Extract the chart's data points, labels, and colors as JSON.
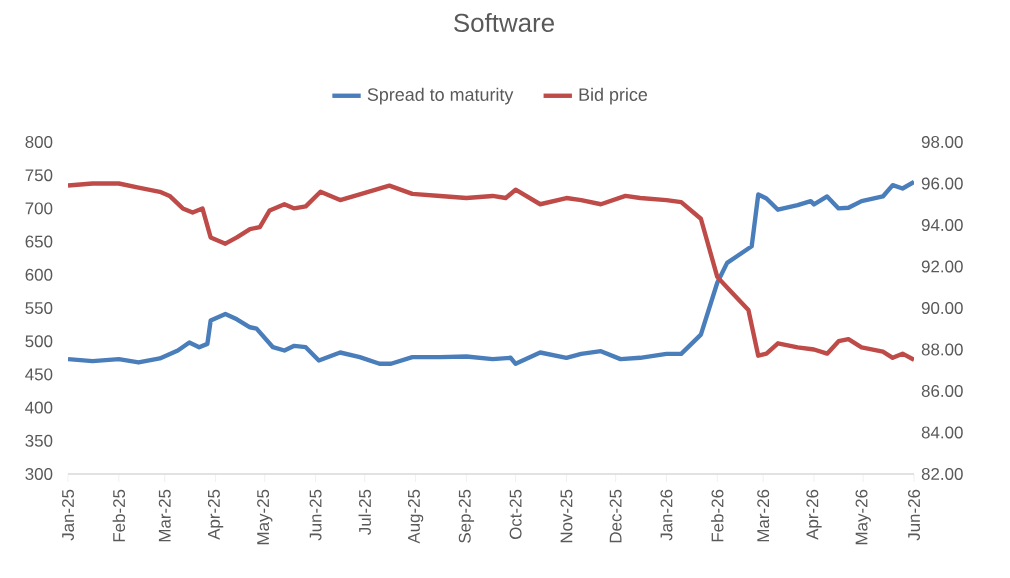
{
  "chart_data": {
    "type": "line",
    "title": "Software",
    "legend": "top",
    "marker": "none",
    "line_style": "solid",
    "xlim": [
      "2025-01-01",
      "2026-06-01"
    ],
    "xticks": [
      {
        "value": "2025-01",
        "label": "Jan-25"
      },
      {
        "value": "2025-02",
        "label": "Feb-25"
      },
      {
        "value": "2025-03",
        "label": "Mar-25"
      },
      {
        "value": "2025-04",
        "label": "Apr-25"
      },
      {
        "value": "2025-05",
        "label": "May-25"
      },
      {
        "value": "2025-06",
        "label": "Jun-25"
      },
      {
        "value": "2025-07",
        "label": "Jul-25"
      },
      {
        "value": "2025-08",
        "label": "Aug-25"
      },
      {
        "value": "2025-09",
        "label": "Sep-25"
      },
      {
        "value": "2025-10",
        "label": "Oct-25"
      },
      {
        "value": "2025-11",
        "label": "Nov-25"
      },
      {
        "value": "2025-12",
        "label": "Dec-25"
      },
      {
        "value": "2026-01",
        "label": "Jan-26"
      },
      {
        "value": "2026-02",
        "label": "Feb-26"
      },
      {
        "value": "2026-03",
        "label": "Mar-26"
      },
      {
        "value": "2026-04",
        "label": "Apr-26"
      },
      {
        "value": "2026-05",
        "label": "May-26"
      },
      {
        "value": "2026-06",
        "label": "Jun-26"
      }
    ],
    "ylim": [
      300,
      800
    ],
    "yticks": [
      300,
      350,
      400,
      450,
      500,
      550,
      600,
      650,
      700,
      750,
      800
    ],
    "y2lim": [
      82,
      98
    ],
    "y2ticks": [
      {
        "value": 82,
        "label": "82.00"
      },
      {
        "value": 84,
        "label": "84.00"
      },
      {
        "value": 86,
        "label": "86.00"
      },
      {
        "value": 88,
        "label": "88.00"
      },
      {
        "value": 90,
        "label": "90.00"
      },
      {
        "value": 92,
        "label": "92.00"
      },
      {
        "value": 94,
        "label": "94.00"
      },
      {
        "value": 96,
        "label": "96.00"
      },
      {
        "value": 98,
        "label": "98.00"
      }
    ],
    "series": [
      {
        "name": "Spread to maturity",
        "color": "#4a7ebb",
        "x": [
          "2025-01-01",
          "2025-01-16",
          "2025-02-01",
          "2025-02-13",
          "2025-02-26",
          "2025-03-09",
          "2025-03-16",
          "2025-03-22",
          "2025-03-27",
          "2025-03-29",
          "2025-04-07",
          "2025-04-14",
          "2025-04-22",
          "2025-04-26",
          "2025-05-06",
          "2025-05-13",
          "2025-05-19",
          "2025-05-26",
          "2025-06-03",
          "2025-06-16",
          "2025-06-28",
          "2025-07-10",
          "2025-07-17",
          "2025-07-30",
          "2025-08-16",
          "2025-09-01",
          "2025-09-17",
          "2025-09-28",
          "2025-10-01",
          "2025-10-16",
          "2025-11-01",
          "2025-11-10",
          "2025-11-22",
          "2025-12-04",
          "2025-12-16",
          "2026-01-01",
          "2026-01-10",
          "2026-01-22",
          "2026-02-01",
          "2026-02-07",
          "2026-02-13",
          "2026-02-22",
          "2026-02-26",
          "2026-03-03",
          "2026-03-10",
          "2026-03-22",
          "2026-03-30",
          "2026-04-01",
          "2026-04-09",
          "2026-04-16",
          "2026-04-22",
          "2026-04-30",
          "2026-05-13",
          "2026-05-19",
          "2026-05-25",
          "2026-06-01"
        ],
        "values": [
          473,
          470,
          473,
          468,
          474,
          486,
          498,
          491,
          496,
          531,
          541,
          533,
          521,
          519,
          491,
          486,
          493,
          491,
          471,
          483,
          476,
          466,
          466,
          476,
          476,
          477,
          473,
          475,
          466,
          483,
          475,
          481,
          485,
          473,
          475,
          481,
          481,
          510,
          588,
          618,
          628,
          643,
          721,
          715,
          698,
          705,
          711,
          706,
          718,
          700,
          701,
          711,
          718,
          735,
          730,
          740
        ]
      },
      {
        "name": "Bid price",
        "color": "#be4b48",
        "axis": "y2",
        "x": [
          "2025-01-01",
          "2025-01-16",
          "2025-02-01",
          "2025-02-13",
          "2025-02-26",
          "2025-03-04",
          "2025-03-12",
          "2025-03-18",
          "2025-03-24",
          "2025-03-29",
          "2025-04-07",
          "2025-04-14",
          "2025-04-22",
          "2025-04-28",
          "2025-05-04",
          "2025-05-13",
          "2025-05-19",
          "2025-05-26",
          "2025-06-04",
          "2025-06-16",
          "2025-06-29",
          "2025-07-16",
          "2025-07-30",
          "2025-08-16",
          "2025-09-01",
          "2025-09-17",
          "2025-09-25",
          "2025-10-01",
          "2025-10-16",
          "2025-11-01",
          "2025-11-10",
          "2025-11-22",
          "2025-12-07",
          "2025-12-16",
          "2026-01-01",
          "2026-01-10",
          "2026-01-22",
          "2026-02-01",
          "2026-02-08",
          "2026-02-20",
          "2026-02-26",
          "2026-03-03",
          "2026-03-10",
          "2026-03-22",
          "2026-04-01",
          "2026-04-09",
          "2026-04-16",
          "2026-04-22",
          "2026-04-30",
          "2026-05-13",
          "2026-05-19",
          "2026-05-25",
          "2026-06-01"
        ],
        "values": [
          95.9,
          96.0,
          96.0,
          95.8,
          95.6,
          95.4,
          94.8,
          94.6,
          94.8,
          93.4,
          93.1,
          93.4,
          93.8,
          93.9,
          94.7,
          95.0,
          94.8,
          94.9,
          95.6,
          95.2,
          95.5,
          95.9,
          95.5,
          95.4,
          95.3,
          95.4,
          95.3,
          95.7,
          95.0,
          95.3,
          95.2,
          95.0,
          95.4,
          95.3,
          95.2,
          95.1,
          94.3,
          91.5,
          90.9,
          89.9,
          87.7,
          87.8,
          88.3,
          88.1,
          88.0,
          87.8,
          88.4,
          88.5,
          88.1,
          87.9,
          87.6,
          87.8,
          87.5
        ]
      }
    ]
  }
}
